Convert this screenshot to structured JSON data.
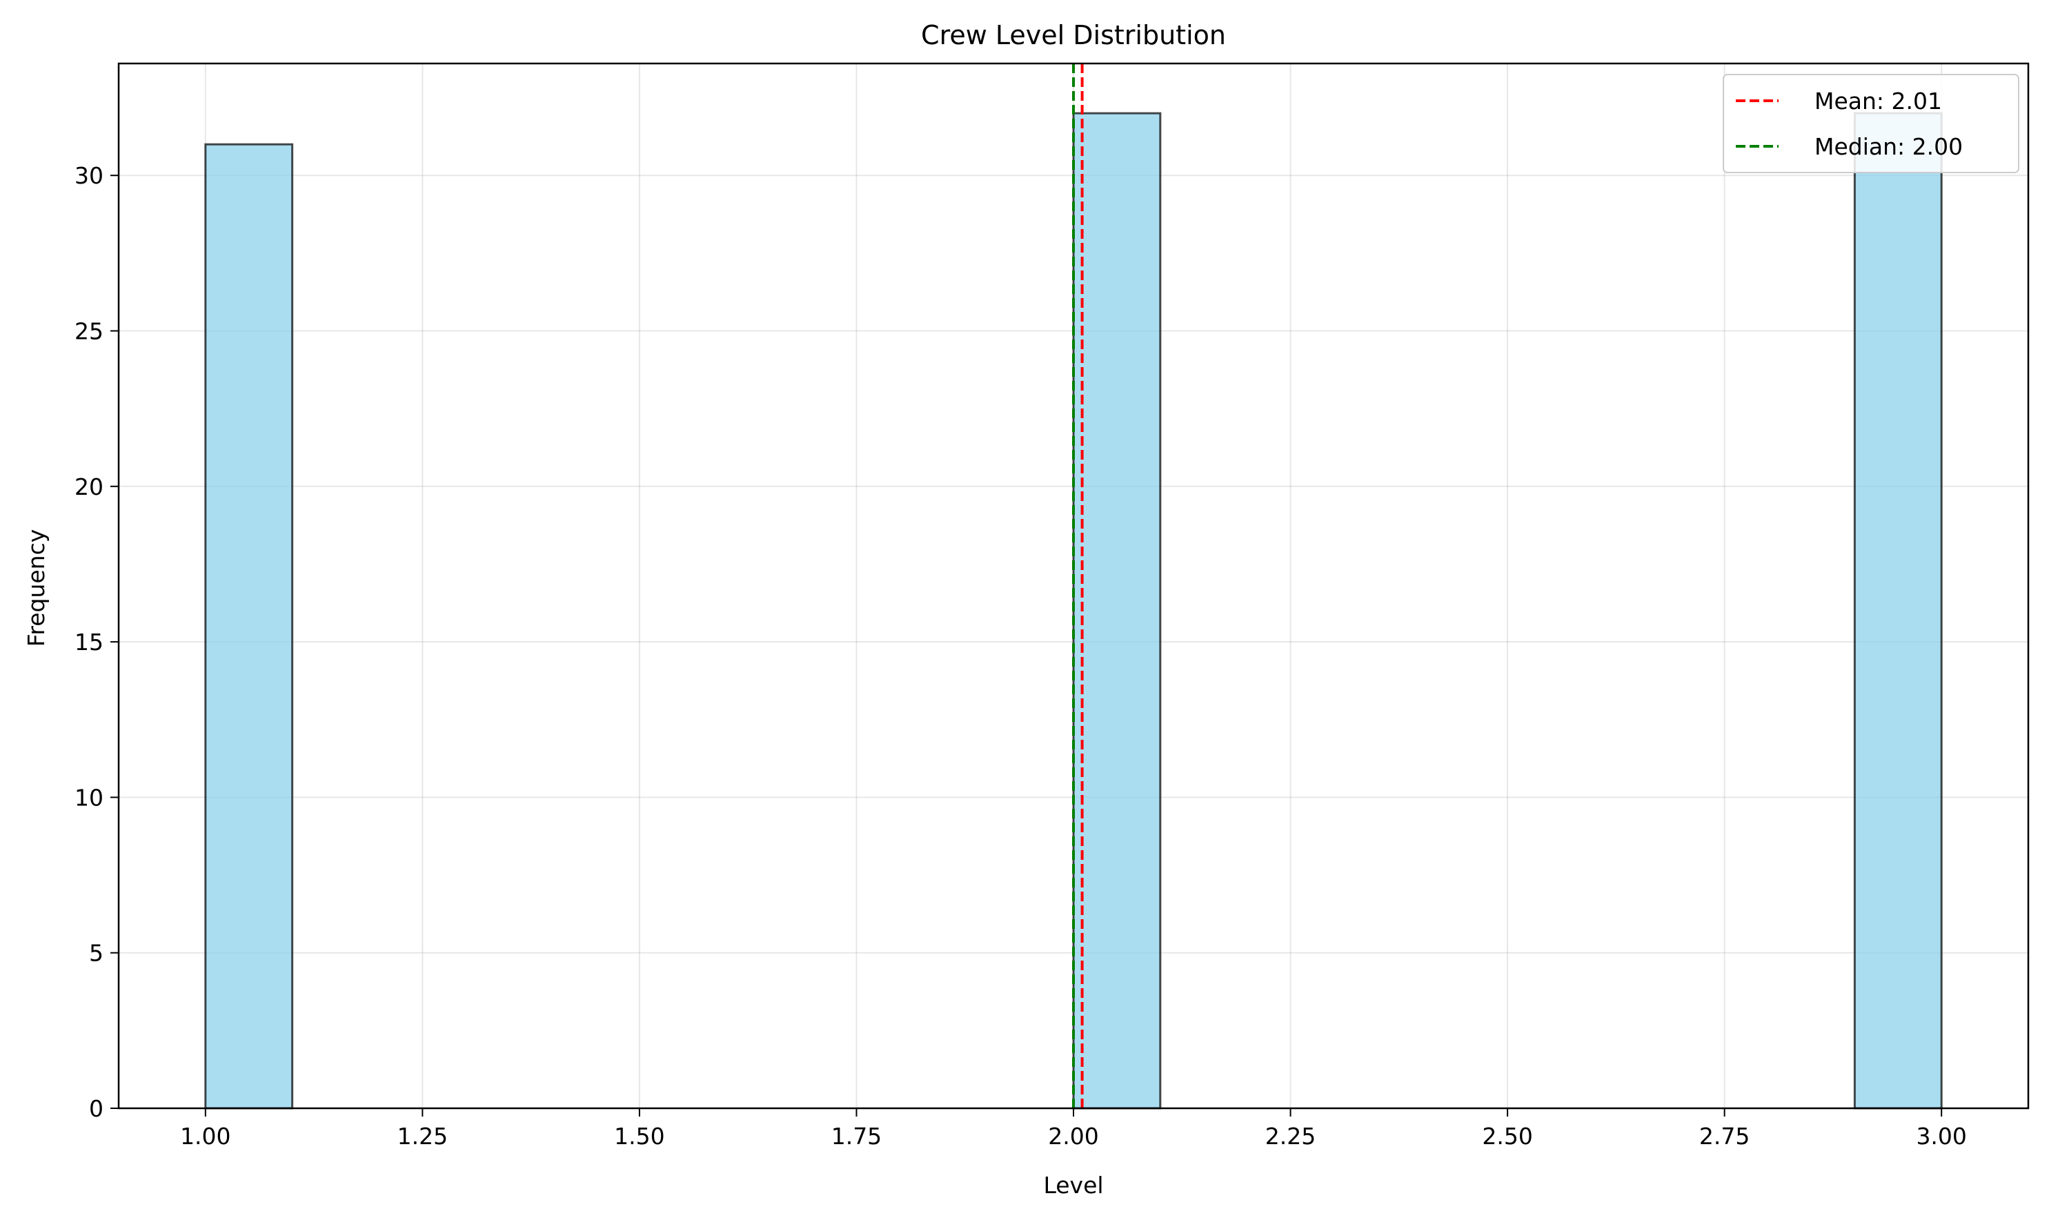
{
  "chart_data": {
    "type": "bar",
    "title": "Crew Level Distribution",
    "xlabel": "Level",
    "ylabel": "Frequency",
    "xlim": [
      0.9,
      3.1
    ],
    "ylim": [
      0,
      33.6
    ],
    "xticks": [
      1.0,
      1.25,
      1.5,
      1.75,
      2.0,
      2.25,
      2.5,
      2.75,
      3.0
    ],
    "xtick_labels": [
      "1.00",
      "1.25",
      "1.50",
      "1.75",
      "2.00",
      "2.25",
      "2.50",
      "2.75",
      "3.00"
    ],
    "yticks": [
      0,
      5,
      10,
      15,
      20,
      25,
      30
    ],
    "ytick_labels": [
      "0",
      "5",
      "10",
      "15",
      "20",
      "25",
      "30"
    ],
    "grid": true,
    "bars": [
      {
        "x0": 1.0,
        "x1": 1.1,
        "value": 31
      },
      {
        "x0": 2.0,
        "x1": 2.1,
        "value": 32
      },
      {
        "x0": 2.9,
        "x1": 3.0,
        "value": 32
      }
    ],
    "bar_color": "#87CEEB",
    "bar_edge_color": "#000000",
    "reference_lines": [
      {
        "label": "Mean: 2.01",
        "x": 2.01,
        "color": "#ff0000",
        "style": "dashed"
      },
      {
        "label": "Median: 2.00",
        "x": 2.0,
        "color": "#008000",
        "style": "dashed"
      }
    ],
    "legend_position": "top-right"
  }
}
